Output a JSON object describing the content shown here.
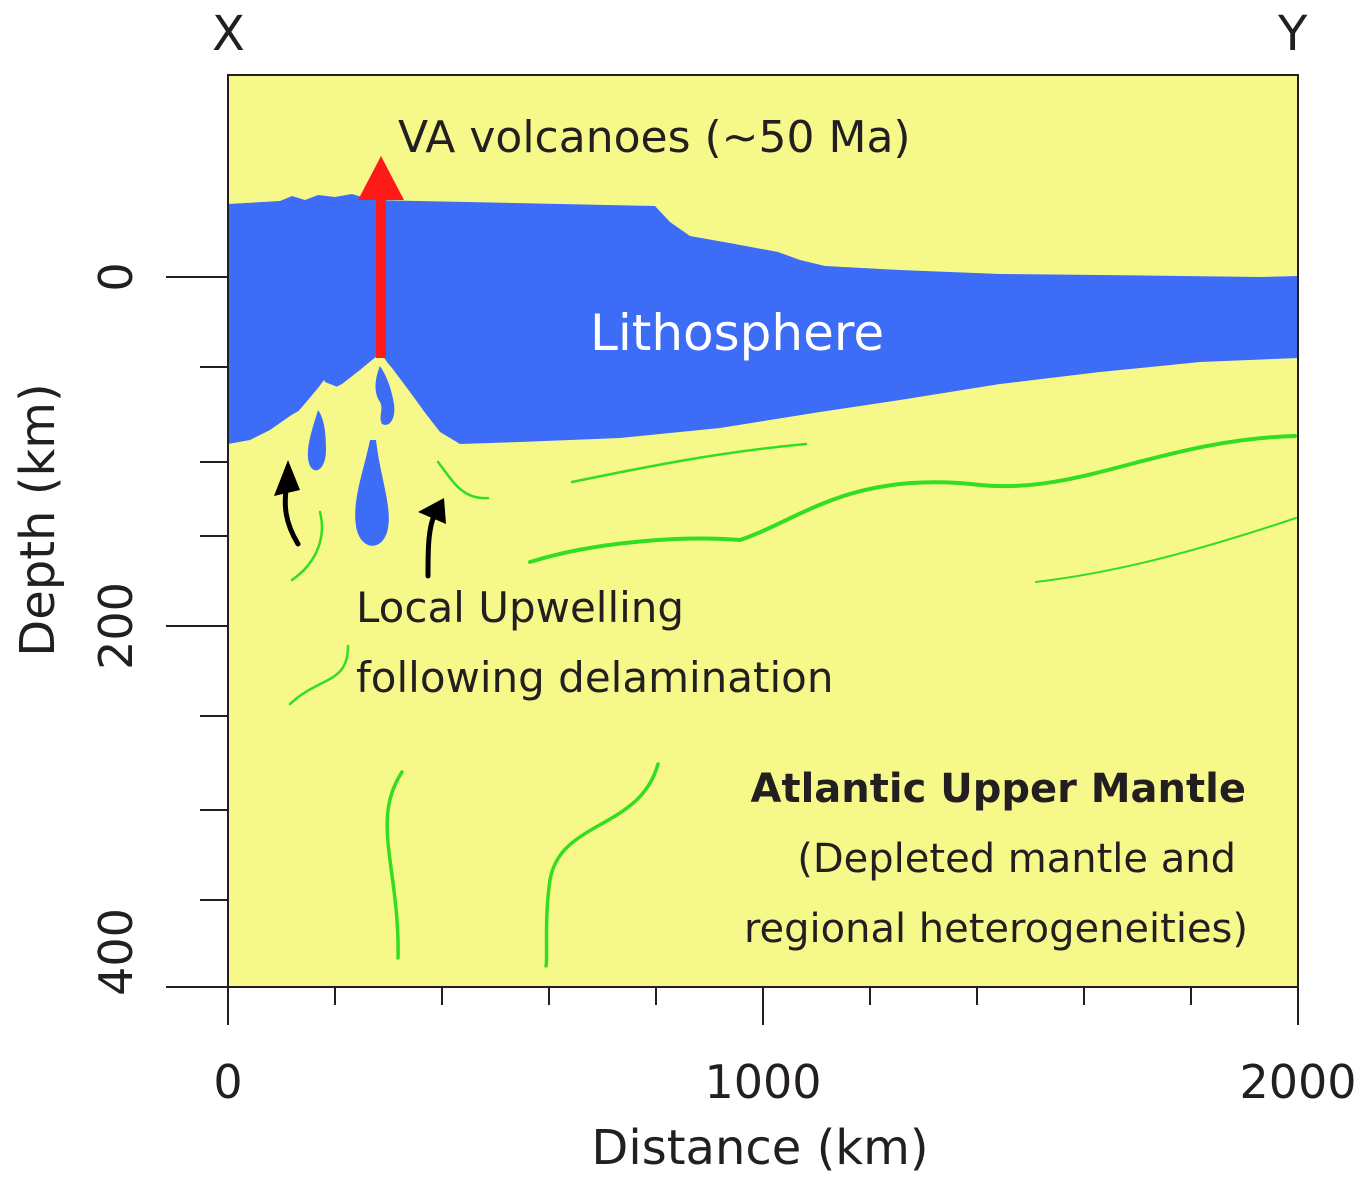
{
  "endpoints": {
    "left": "X",
    "right": "Y"
  },
  "axes": {
    "x_title": "Distance (km)",
    "y_title": "Depth (km)",
    "x_ticks": [
      "0",
      "1000",
      "2000"
    ],
    "y_ticks": [
      "0",
      "200",
      "400"
    ],
    "x_range_km": [
      0,
      2000
    ],
    "y_range_km": [
      0,
      400
    ]
  },
  "labels": {
    "volcano": "VA volcanoes (~50 Ma)",
    "lithosphere": "Lithosphere",
    "upwelling_line1": "Local Upwelling",
    "upwelling_line2": "following delamination",
    "mantle_title": "Atlantic Upper Mantle",
    "mantle_line2": "(Depleted mantle and",
    "mantle_line3": "regional heterogeneities)"
  },
  "colors": {
    "lithosphere": "#3d6cf7",
    "mantle": "#f6f98a",
    "heterogeneity_lines": "#33dd22",
    "volcano_arrow": "#ff1a1a",
    "upwelling_arrows": "#000000"
  }
}
